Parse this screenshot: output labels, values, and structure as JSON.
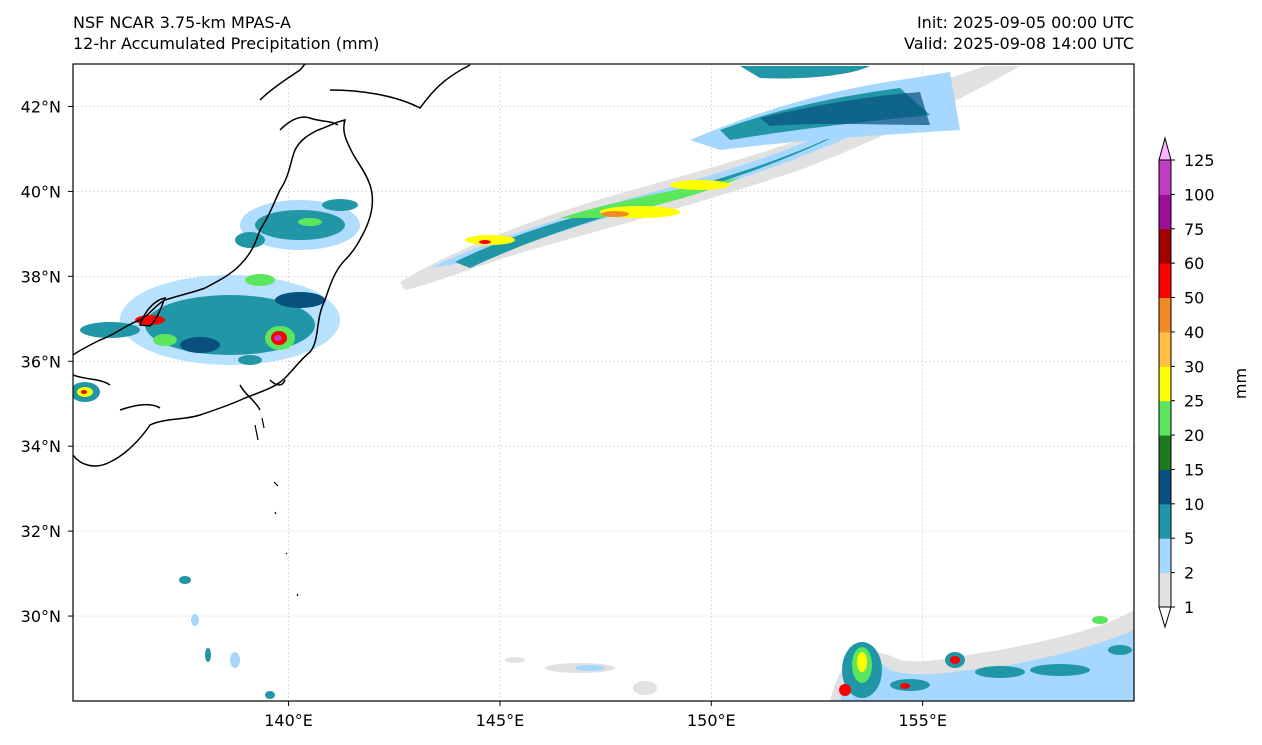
{
  "header": {
    "model": "NSF NCAR 3.75-km MPAS-A",
    "product": "12-hr Accumulated Precipitation (mm)",
    "init": "Init: 2025-09-05 00:00 UTC",
    "valid": "Valid: 2025-09-08 14:00 UTC"
  },
  "map": {
    "lon_range": [
      134.9,
      160.0
    ],
    "lat_range": [
      28.0,
      43.0
    ],
    "lon_ticks": [
      {
        "value": 140,
        "label": "140°E"
      },
      {
        "value": 145,
        "label": "145°E"
      },
      {
        "value": 150,
        "label": "150°E"
      },
      {
        "value": 155,
        "label": "155°E"
      }
    ],
    "lat_ticks": [
      {
        "value": 42,
        "label": "42°N"
      },
      {
        "value": 40,
        "label": "40°N"
      },
      {
        "value": 38,
        "label": "38°N"
      },
      {
        "value": 36,
        "label": "36°N"
      },
      {
        "value": 34,
        "label": "34°N"
      },
      {
        "value": 32,
        "label": "32°N"
      },
      {
        "value": 30,
        "label": "30°N"
      }
    ],
    "gridlines": true
  },
  "colorbar": {
    "unit_label": "mm",
    "levels": [
      "1",
      "2",
      "5",
      "10",
      "15",
      "20",
      "25",
      "30",
      "40",
      "50",
      "60",
      "75",
      "100",
      "125"
    ],
    "colors": [
      "#e1e1e1",
      "#a6d8ff",
      "#2196a6",
      "#08507e",
      "#1f7a1f",
      "#5ce65c",
      "#ffff00",
      "#ffbf40",
      "#f08a24",
      "#ff0000",
      "#a30000",
      "#9b0f9b",
      "#c13ec1",
      "#ffb3ff"
    ]
  }
}
